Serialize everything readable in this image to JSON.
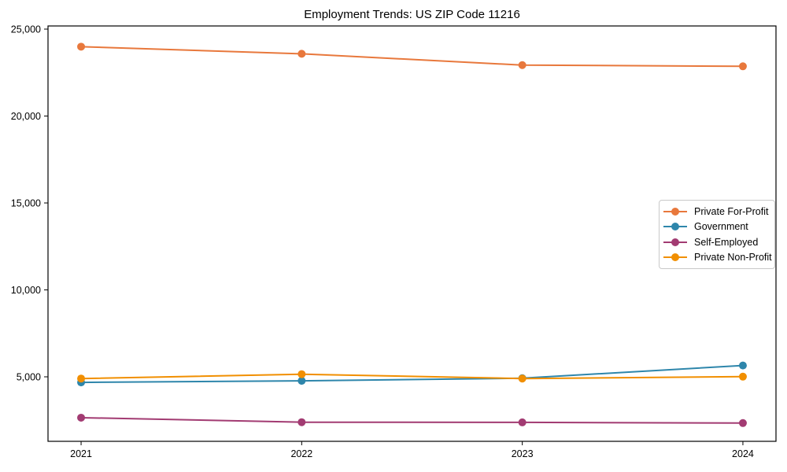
{
  "chart_data": {
    "type": "line",
    "title": "Employment Trends: US ZIP Code 11216",
    "xlabel": "",
    "ylabel": "",
    "x": [
      2021,
      2022,
      2023,
      2024
    ],
    "x_tick_labels": [
      "2021",
      "2022",
      "2023",
      "2024"
    ],
    "xlim": [
      2020.85,
      2024.15
    ],
    "ylim": [
      1290,
      25181
    ],
    "yticks": [
      {
        "value": 5000,
        "label": "5,000"
      },
      {
        "value": 10000,
        "label": "10,000"
      },
      {
        "value": 15000,
        "label": "15,000"
      },
      {
        "value": 20000,
        "label": "20,000"
      },
      {
        "value": 25000,
        "label": "25,000"
      }
    ],
    "grid": false,
    "legend_position": "center-right",
    "series": [
      {
        "name": "Private For-Profit",
        "color": "#E8783C",
        "values": [
          23990,
          23580,
          22930,
          22860
        ]
      },
      {
        "name": "Government",
        "color": "#2E86AB",
        "values": [
          4680,
          4770,
          4920,
          5650
        ]
      },
      {
        "name": "Self-Employed",
        "color": "#A23B72",
        "values": [
          2650,
          2390,
          2380,
          2340
        ]
      },
      {
        "name": "Private Non-Profit",
        "color": "#F18F01",
        "values": [
          4900,
          5150,
          4900,
          5010
        ]
      }
    ]
  }
}
